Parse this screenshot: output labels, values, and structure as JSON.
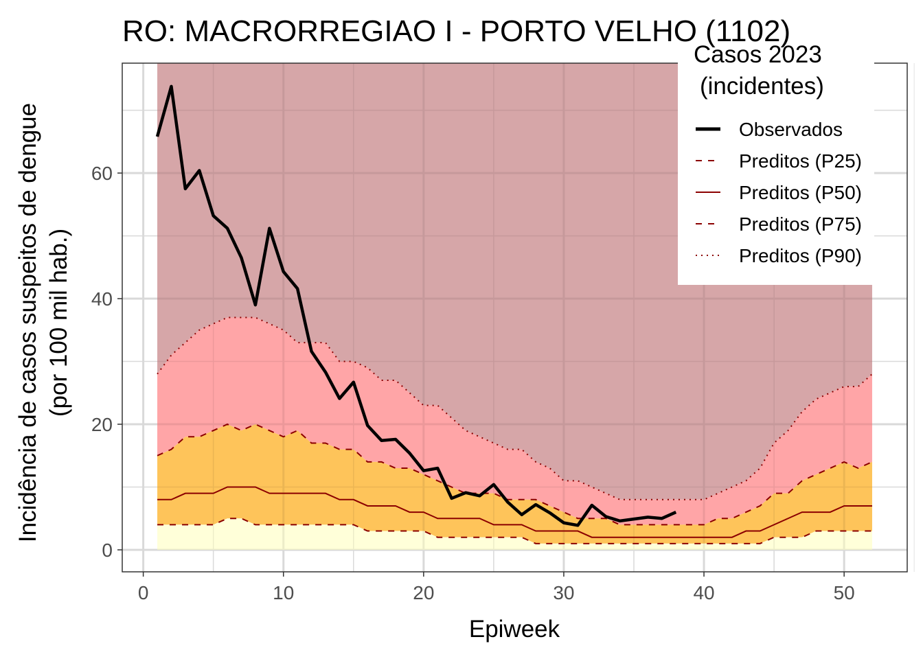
{
  "chart_data": {
    "type": "line",
    "title": "RO: MACRORREGIAO I - PORTO VELHO (1102)",
    "xlabel": "Epiweek",
    "ylabel": [
      "Incidência de casos suspeitos de dengue",
      "(por 100 mil hab.)"
    ],
    "xlim": [
      -1.5,
      54.5
    ],
    "ylim": [
      -3.5,
      77.5
    ],
    "x_ticks": [
      0,
      10,
      20,
      30,
      40,
      50
    ],
    "y_ticks": [
      0,
      20,
      40,
      60
    ],
    "grid": true,
    "legend": {
      "placement": "top-right",
      "title": [
        "Casos 2023",
        "(incidentes)"
      ],
      "entries": [
        {
          "label": "Observados",
          "color": "#000000",
          "style": "solid-thick"
        },
        {
          "label": "Preditos (P25)",
          "color": "#8b0000",
          "style": "dashed"
        },
        {
          "label": "Preditos (P50)",
          "color": "#8b0000",
          "style": "solid"
        },
        {
          "label": "Preditos (P75)",
          "color": "#8b0000",
          "style": "dashed"
        },
        {
          "label": "Preditos (P90)",
          "color": "#8b0000",
          "style": "dotted"
        }
      ]
    },
    "band_colors": {
      "below_p25": "#ffffd9",
      "p25_p75": "#fec45a",
      "p75_p90": "#ffa5a7",
      "above_p90": "#d6a6a8"
    },
    "band_top": 77.5,
    "x_weeks": [
      1,
      2,
      3,
      4,
      5,
      6,
      7,
      8,
      9,
      10,
      11,
      12,
      13,
      14,
      15,
      16,
      17,
      18,
      19,
      20,
      21,
      22,
      23,
      24,
      25,
      26,
      27,
      28,
      29,
      30,
      31,
      32,
      33,
      34,
      35,
      36,
      37,
      38,
      39,
      40,
      41,
      42,
      43,
      44,
      45,
      46,
      47,
      48,
      49,
      50,
      51,
      52
    ],
    "series": [
      {
        "name": "Preditos (P25)",
        "values": [
          4,
          4,
          4,
          4,
          4,
          5,
          5,
          4,
          4,
          4,
          4,
          4,
          4,
          4,
          4,
          3,
          3,
          3,
          3,
          3,
          2,
          2,
          2,
          2,
          2,
          2,
          2,
          1,
          1,
          1,
          1,
          1,
          1,
          1,
          1,
          1,
          1,
          1,
          1,
          1,
          1,
          1,
          1,
          1,
          2,
          2,
          2,
          3,
          3,
          3,
          3,
          3
        ]
      },
      {
        "name": "Preditos (P50)",
        "values": [
          8,
          8,
          9,
          9,
          9,
          10,
          10,
          10,
          9,
          9,
          9,
          9,
          9,
          8,
          8,
          7,
          7,
          7,
          6,
          6,
          5,
          5,
          5,
          5,
          4,
          4,
          4,
          3,
          3,
          3,
          3,
          2,
          2,
          2,
          2,
          2,
          2,
          2,
          2,
          2,
          2,
          2,
          3,
          3,
          4,
          5,
          6,
          6,
          6,
          7,
          7,
          7
        ]
      },
      {
        "name": "Preditos (P75)",
        "values": [
          15,
          16,
          18,
          18,
          19,
          20,
          19,
          20,
          19,
          18,
          19,
          17,
          17,
          16,
          16,
          14,
          14,
          13,
          13,
          12,
          11,
          10,
          9,
          9,
          9,
          8,
          8,
          8,
          7,
          6,
          5,
          5,
          5,
          4,
          4,
          4,
          4,
          4,
          4,
          4,
          5,
          5,
          6,
          7,
          9,
          9,
          11,
          12,
          13,
          14,
          13,
          14
        ]
      },
      {
        "name": "Preditos (P90)",
        "values": [
          28,
          31,
          33,
          35,
          36,
          37,
          37,
          37,
          36,
          35,
          33,
          33,
          33,
          30,
          30,
          29,
          27,
          27,
          25,
          23,
          23,
          21,
          19,
          18,
          17,
          16,
          16,
          14,
          13,
          11,
          11,
          10,
          9,
          8,
          8,
          8,
          8,
          8,
          8,
          8,
          9,
          10,
          11,
          13,
          17,
          19,
          22,
          24,
          25,
          26,
          26,
          28
        ]
      },
      {
        "name": "Observados",
        "x": [
          1,
          2,
          3,
          4,
          5,
          6,
          7,
          8,
          9,
          10,
          11,
          12,
          13,
          14,
          15,
          16,
          17,
          18,
          19,
          20,
          21,
          22,
          23,
          24,
          25,
          26,
          27,
          28,
          29,
          30,
          31,
          32,
          33,
          34,
          35,
          36,
          37,
          38
        ],
        "values": [
          65.8,
          73.8,
          57.5,
          60.4,
          53.2,
          51.2,
          46.5,
          39,
          51.2,
          44.3,
          41.6,
          31.6,
          28.3,
          24.1,
          26.7,
          19.8,
          17.4,
          17.6,
          15.4,
          12.6,
          13,
          8.2,
          9.1,
          8.6,
          10.4,
          7.6,
          5.6,
          7.2,
          5.9,
          4.3,
          3.9,
          7.1,
          5.3,
          4.6,
          4.9,
          5.2,
          5,
          6
        ]
      }
    ]
  }
}
